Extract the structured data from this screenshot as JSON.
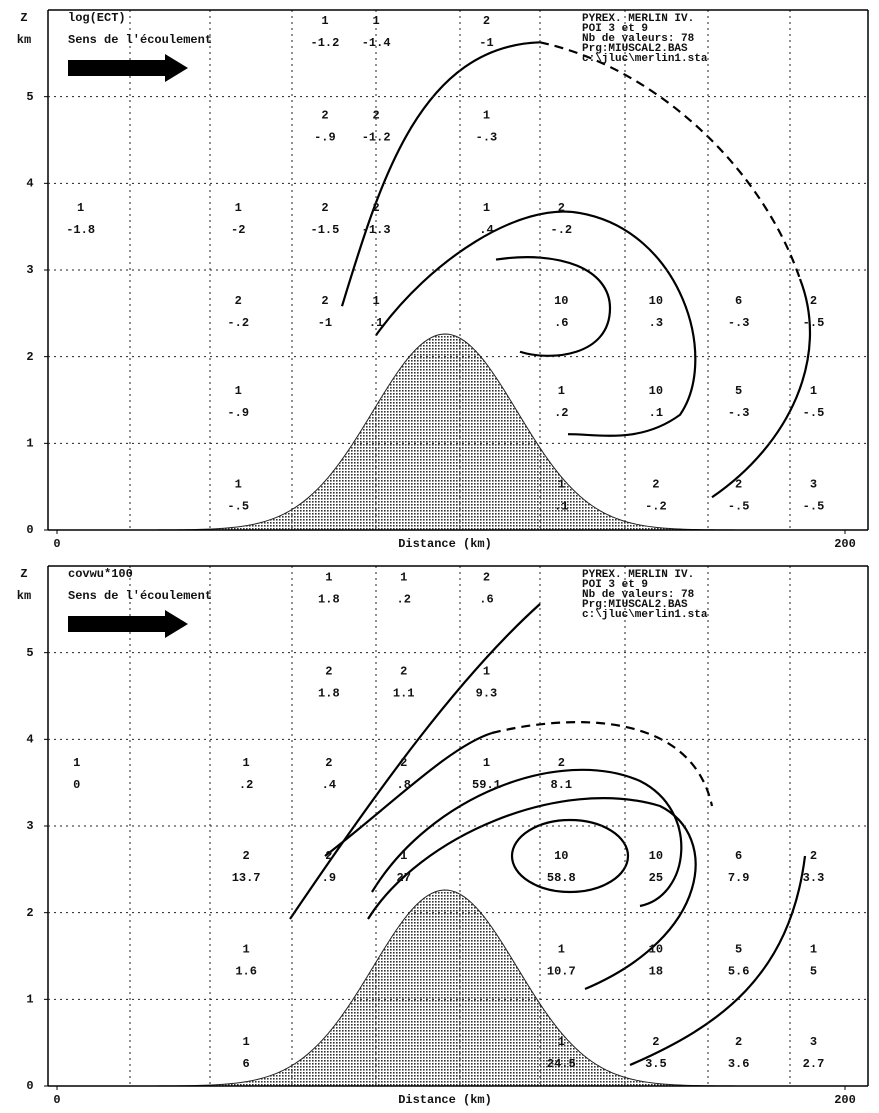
{
  "chart_data": [
    {
      "type": "section",
      "title": "log(ECT)",
      "subtitle": "Sens de l'écoulement",
      "info": [
        "PYREX. MERLIN IV.",
        "POI 3 et 9",
        "Nb de valeurs: 78",
        "Prg:MIUSCAL2.BAS",
        "c:\\jluc\\merlin1.sta"
      ],
      "ylabel": "Z",
      "yunit": "km",
      "xlabel": "Distance (km)",
      "xlim": [
        0,
        200
      ],
      "ylim": [
        0,
        6
      ],
      "xticks": [
        0,
        200
      ],
      "yticks": [
        0,
        1,
        2,
        3,
        4,
        5
      ],
      "cells": [
        {
          "x": 68,
          "z": 5.75,
          "count": "1",
          "value": "-1.2"
        },
        {
          "x": 81,
          "z": 5.75,
          "count": "1",
          "value": "-1.4"
        },
        {
          "x": 109,
          "z": 5.75,
          "count": "2",
          "value": "-1"
        },
        {
          "x": 68,
          "z": 4.66,
          "count": "2",
          "value": "-.9"
        },
        {
          "x": 81,
          "z": 4.66,
          "count": "2",
          "value": "-1.2"
        },
        {
          "x": 109,
          "z": 4.66,
          "count": "1",
          "value": "-.3"
        },
        {
          "x": 6,
          "z": 3.59,
          "count": "1",
          "value": "-1.8"
        },
        {
          "x": 46,
          "z": 3.59,
          "count": "1",
          "value": "-2"
        },
        {
          "x": 68,
          "z": 3.59,
          "count": "2",
          "value": "-1.5"
        },
        {
          "x": 81,
          "z": 3.59,
          "count": "2",
          "value": "-1.3"
        },
        {
          "x": 109,
          "z": 3.59,
          "count": "1",
          "value": ".4"
        },
        {
          "x": 128,
          "z": 3.59,
          "count": "2",
          "value": "-.2"
        },
        {
          "x": 46,
          "z": 2.52,
          "count": "2",
          "value": "-.2"
        },
        {
          "x": 68,
          "z": 2.52,
          "count": "2",
          "value": "-1"
        },
        {
          "x": 81,
          "z": 2.52,
          "count": "1",
          "value": ".1"
        },
        {
          "x": 128,
          "z": 2.52,
          "count": "10",
          "value": ".6"
        },
        {
          "x": 152,
          "z": 2.52,
          "count": "10",
          "value": ".3"
        },
        {
          "x": 173,
          "z": 2.52,
          "count": "6",
          "value": "-.3"
        },
        {
          "x": 192,
          "z": 2.52,
          "count": "2",
          "value": "-.5"
        },
        {
          "x": 46,
          "z": 1.48,
          "count": "1",
          "value": "-.9"
        },
        {
          "x": 128,
          "z": 1.48,
          "count": "1",
          "value": ".2"
        },
        {
          "x": 152,
          "z": 1.48,
          "count": "10",
          "value": ".1"
        },
        {
          "x": 173,
          "z": 1.48,
          "count": "5",
          "value": "-.3"
        },
        {
          "x": 192,
          "z": 1.48,
          "count": "1",
          "value": "-.5"
        },
        {
          "x": 46,
          "z": 0.4,
          "count": "1",
          "value": "-.5"
        },
        {
          "x": 128,
          "z": 0.4,
          "count": "1",
          "value": ".1"
        },
        {
          "x": 152,
          "z": 0.4,
          "count": "2",
          "value": "-.2"
        },
        {
          "x": 173,
          "z": 0.4,
          "count": "2",
          "value": "-.5"
        },
        {
          "x": 192,
          "z": 0.4,
          "count": "3",
          "value": "-.5"
        }
      ]
    },
    {
      "type": "section",
      "title": "covwu*100",
      "subtitle": "Sens de l'écoulement",
      "info": [
        "PYREX. MERLIN IV.",
        "POI 3 et 9",
        "Nb de valeurs: 78",
        "Prg:MIUSCAL2.BAS",
        "c:\\jluc\\merlin1.sta"
      ],
      "ylabel": "Z",
      "yunit": "km",
      "xlabel": "Distance (km)",
      "xlim": [
        0,
        200
      ],
      "ylim": [
        0,
        6
      ],
      "xticks": [
        0,
        200
      ],
      "yticks": [
        0,
        1,
        2,
        3,
        4,
        5
      ],
      "cells": [
        {
          "x": 69,
          "z": 5.74,
          "count": "1",
          "value": "1.8"
        },
        {
          "x": 88,
          "z": 5.74,
          "count": "1",
          "value": ".2"
        },
        {
          "x": 109,
          "z": 5.74,
          "count": "2",
          "value": ".6"
        },
        {
          "x": 69,
          "z": 4.66,
          "count": "2",
          "value": "1.8"
        },
        {
          "x": 88,
          "z": 4.66,
          "count": "2",
          "value": "1.1"
        },
        {
          "x": 109,
          "z": 4.66,
          "count": "1",
          "value": "9.3"
        },
        {
          "x": 5,
          "z": 3.6,
          "count": "1",
          "value": "0"
        },
        {
          "x": 48,
          "z": 3.6,
          "count": "1",
          "value": ".2"
        },
        {
          "x": 69,
          "z": 3.6,
          "count": "2",
          "value": ".4"
        },
        {
          "x": 88,
          "z": 3.6,
          "count": "2",
          "value": ".8"
        },
        {
          "x": 109,
          "z": 3.6,
          "count": "1",
          "value": "59.1"
        },
        {
          "x": 128,
          "z": 3.6,
          "count": "2",
          "value": "8.1"
        },
        {
          "x": 48,
          "z": 2.53,
          "count": "2",
          "value": "13.7"
        },
        {
          "x": 69,
          "z": 2.53,
          "count": "2",
          "value": ".9"
        },
        {
          "x": 88,
          "z": 2.53,
          "count": "1",
          "value": "27"
        },
        {
          "x": 128,
          "z": 2.53,
          "count": "10",
          "value": "58.8"
        },
        {
          "x": 152,
          "z": 2.53,
          "count": "10",
          "value": "25"
        },
        {
          "x": 173,
          "z": 2.53,
          "count": "6",
          "value": "7.9"
        },
        {
          "x": 192,
          "z": 2.53,
          "count": "2",
          "value": "3.3"
        },
        {
          "x": 48,
          "z": 1.45,
          "count": "1",
          "value": "1.6"
        },
        {
          "x": 128,
          "z": 1.45,
          "count": "1",
          "value": "10.7"
        },
        {
          "x": 152,
          "z": 1.45,
          "count": "10",
          "value": "18"
        },
        {
          "x": 173,
          "z": 1.45,
          "count": "5",
          "value": "5.6"
        },
        {
          "x": 192,
          "z": 1.45,
          "count": "1",
          "value": "5"
        },
        {
          "x": 48,
          "z": 0.38,
          "count": "1",
          "value": "6"
        },
        {
          "x": 128,
          "z": 0.38,
          "count": "1",
          "value": "24.5"
        },
        {
          "x": 152,
          "z": 0.38,
          "count": "2",
          "value": "3.5"
        },
        {
          "x": 173,
          "z": 0.38,
          "count": "2",
          "value": "3.6"
        },
        {
          "x": 192,
          "z": 0.38,
          "count": "3",
          "value": "2.7"
        }
      ]
    }
  ]
}
